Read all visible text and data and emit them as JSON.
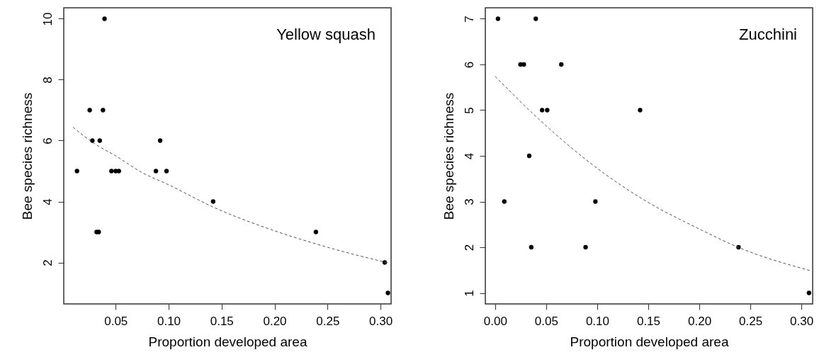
{
  "chart_data": [
    {
      "type": "scatter",
      "annotations": [
        "Yellow squash"
      ],
      "xlabel": "Proportion developed area",
      "ylabel": "Bee species richness",
      "xlim": [
        0.001,
        0.31
      ],
      "ylim": [
        0.64,
        10.36
      ],
      "xticks": [
        {
          "value": 0.05,
          "label": "0.05"
        },
        {
          "value": 0.1,
          "label": "0.10"
        },
        {
          "value": 0.15,
          "label": "0.15"
        },
        {
          "value": 0.2,
          "label": "0.20"
        },
        {
          "value": 0.25,
          "label": "0.25"
        },
        {
          "value": 0.3,
          "label": "0.30"
        }
      ],
      "yticks": [
        2,
        4,
        6,
        8,
        10
      ],
      "grid": false,
      "marker": "circle",
      "series": [
        {
          "color": "#000000",
          "x": [
            0.0135,
            0.0255,
            0.028,
            0.035,
            0.038,
            0.0395,
            0.046,
            0.05,
            0.053,
            0.088,
            0.092,
            0.098,
            0.032,
            0.034,
            0.142,
            0.239,
            0.304,
            0.307
          ],
          "values": [
            5,
            7,
            6,
            6,
            7,
            10,
            5,
            5,
            5,
            5,
            6,
            5,
            3,
            3,
            4,
            3,
            2,
            1
          ]
        },
        {
          "type": "line",
          "marker": "none",
          "color": "#555555",
          "line_style": "dashed",
          "x": [
            0.0098,
            0.03,
            0.05,
            0.075,
            0.1,
            0.142,
            0.2,
            0.25,
            0.308
          ],
          "values": [
            6.44,
            5.9,
            5.5,
            4.95,
            4.55,
            3.82,
            3.04,
            2.5,
            1.98
          ]
        }
      ]
    },
    {
      "type": "scatter",
      "annotations": [
        "Zucchini"
      ],
      "xlabel": "Proportion developed area",
      "ylabel": "Bee species richness",
      "xlim": [
        -0.0096,
        0.311
      ],
      "ylim": [
        0.76,
        7.24
      ],
      "xticks": [
        {
          "value": 0,
          "label": "0.00"
        },
        {
          "value": 0.05,
          "label": "0.05"
        },
        {
          "value": 0.1,
          "label": "0.10"
        },
        {
          "value": 0.15,
          "label": "0.15"
        },
        {
          "value": 0.2,
          "label": "0.20"
        },
        {
          "value": 0.25,
          "label": "0.25"
        },
        {
          "value": 0.3,
          "label": "0.30"
        }
      ],
      "yticks": [
        1,
        2,
        3,
        4,
        5,
        6,
        7
      ],
      "grid": false,
      "marker": "circle",
      "series": [
        {
          "color": "#000000",
          "x": [
            0.0028,
            0.0398,
            0.0248,
            0.0281,
            0.0648,
            0.046,
            0.051,
            0.142,
            0.0334,
            0.009,
            0.0982,
            0.0354,
            0.0886,
            0.2384,
            0.3074
          ],
          "values": [
            7,
            7,
            6,
            6,
            6,
            5,
            5,
            5,
            4,
            3,
            3,
            2,
            2,
            2,
            1
          ]
        },
        {
          "type": "line",
          "marker": "none",
          "color": "#555555",
          "line_style": "dashed",
          "x": [
            0,
            0.042,
            0.1028,
            0.15,
            0.2,
            0.238,
            0.31
          ],
          "values": [
            5.74,
            4.82,
            3.68,
            2.98,
            2.4,
            2.0,
            1.48
          ]
        }
      ]
    }
  ]
}
